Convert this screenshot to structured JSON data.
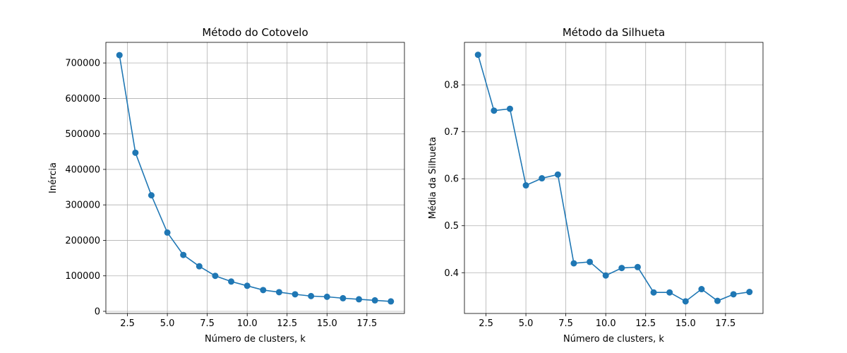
{
  "chart_data": [
    {
      "type": "line",
      "title": "Método do Cotovelo",
      "xlabel": "Número de clusters, k",
      "ylabel": "Inércia",
      "xlim": [
        1.15,
        19.85
      ],
      "ylim": [
        -6000,
        758000
      ],
      "grid": true,
      "marker": "circle",
      "color": "#1f77b4",
      "x_ticks": [
        2.5,
        5.0,
        7.5,
        10.0,
        12.5,
        15.0,
        17.5
      ],
      "x_tick_labels": [
        "2.5",
        "5.0",
        "7.5",
        "10.0",
        "12.5",
        "15.0",
        "17.5"
      ],
      "y_ticks": [
        0,
        100000,
        200000,
        300000,
        400000,
        500000,
        600000,
        700000
      ],
      "y_tick_labels": [
        "0",
        "100000",
        "200000",
        "300000",
        "400000",
        "500000",
        "600000",
        "700000"
      ],
      "x": [
        2,
        3,
        4,
        5,
        6,
        7,
        8,
        9,
        10,
        11,
        12,
        13,
        14,
        15,
        16,
        17,
        18,
        19
      ],
      "values": [
        722000,
        447000,
        327000,
        222000,
        159000,
        127000,
        100000,
        84000,
        72000,
        60000,
        54000,
        48000,
        43000,
        41000,
        37000,
        34000,
        31000,
        28000
      ]
    },
    {
      "type": "line",
      "title": "Método da Silhueta",
      "xlabel": "Número de clusters, k",
      "ylabel": "Média da Silhueta",
      "xlim": [
        1.15,
        19.85
      ],
      "ylim": [
        0.3132,
        0.8904
      ],
      "grid": true,
      "marker": "circle",
      "color": "#1f77b4",
      "x_ticks": [
        2.5,
        5.0,
        7.5,
        10.0,
        12.5,
        15.0,
        17.5
      ],
      "x_tick_labels": [
        "2.5",
        "5.0",
        "7.5",
        "10.0",
        "12.5",
        "15.0",
        "17.5"
      ],
      "y_ticks": [
        0.4,
        0.5,
        0.6,
        0.7,
        0.8
      ],
      "y_tick_labels": [
        "0.4",
        "0.5",
        "0.6",
        "0.7",
        "0.8"
      ],
      "x": [
        2,
        3,
        4,
        5,
        6,
        7,
        8,
        9,
        10,
        11,
        12,
        13,
        14,
        15,
        16,
        17,
        18,
        19
      ],
      "values": [
        0.864,
        0.745,
        0.749,
        0.586,
        0.601,
        0.609,
        0.42,
        0.423,
        0.394,
        0.41,
        0.412,
        0.358,
        0.358,
        0.339,
        0.365,
        0.34,
        0.354,
        0.359
      ]
    }
  ]
}
